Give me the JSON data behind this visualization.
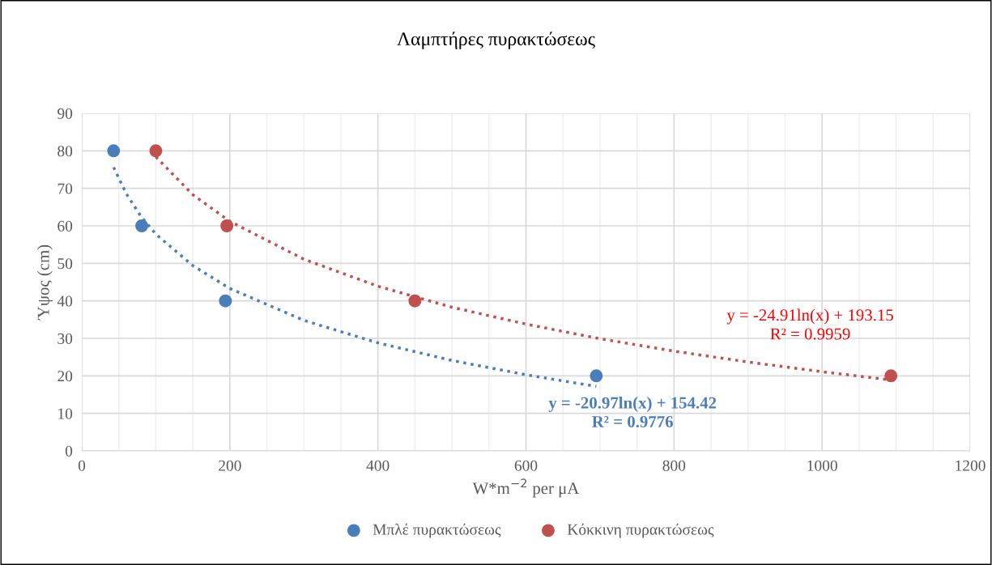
{
  "chart_data": {
    "type": "scatter",
    "title": "Λαμπτήρες πυρακτώσεως",
    "xlabel": "W*m$^{−2}$ per μA",
    "ylabel": "Ύψος (cm)",
    "xlim": [
      0,
      1200
    ],
    "xticks": [
      0,
      200,
      400,
      600,
      800,
      1000,
      1200
    ],
    "ylim": [
      0,
      90
    ],
    "yticks": [
      0,
      10,
      20,
      30,
      40,
      50,
      60,
      70,
      80,
      90
    ],
    "grid": true,
    "legend": "bottom",
    "marker": "circle",
    "series": [
      {
        "name": "Μπλέ πυρακτώσεως",
        "color": "#4a7ebb",
        "x": [
          43,
          81,
          194,
          695
        ],
        "values": [
          80,
          60,
          40,
          20
        ]
      },
      {
        "name": "Κόκκινη πυρακτώσεως",
        "color": "#c0504d",
        "x": [
          100,
          196,
          450,
          1093
        ],
        "values": [
          80,
          60,
          40,
          20
        ]
      },
      {
        "type": "line",
        "marker": "none",
        "line_style": "dotted",
        "color": "#4a7ebb",
        "x": [
          43,
          60,
          80,
          100,
          150,
          200,
          300,
          400,
          500,
          600,
          695
        ],
        "values": [
          75.6,
          68.6,
          62.5,
          57.8,
          49.4,
          43.3,
          34.8,
          28.8,
          24.1,
          20.3,
          17.2
        ]
      },
      {
        "type": "line",
        "marker": "none",
        "line_style": "dotted",
        "color": "#c0504d",
        "x": [
          100,
          150,
          200,
          300,
          400,
          500,
          600,
          700,
          800,
          900,
          1000,
          1093
        ],
        "values": [
          78.4,
          68.3,
          61.2,
          51.1,
          43.9,
          38.3,
          33.8,
          29.9,
          26.6,
          23.7,
          21.1,
          18.9
        ]
      }
    ],
    "annotations": [
      "y = -20.97ln(x) + 154.42\nR² = 0.9776",
      "y = -24.91ln(x) + 193.15\nR² = 0.9959"
    ]
  }
}
